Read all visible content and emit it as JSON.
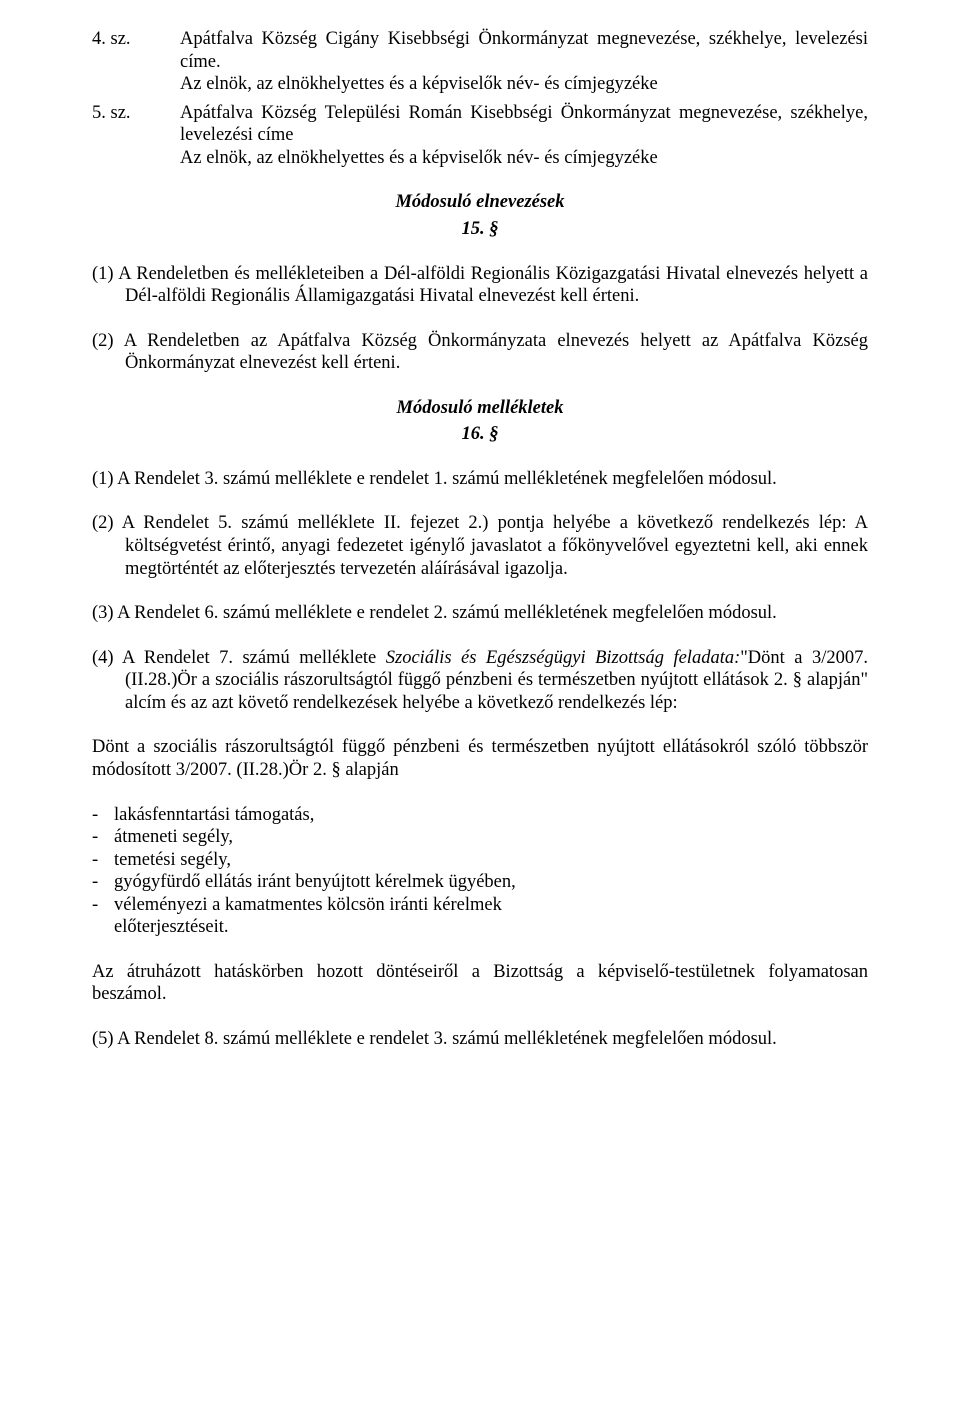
{
  "items": [
    {
      "num": "4. sz.",
      "line1": "Apátfalva Község Cigány Kisebbségi Önkormányzat megnevezése, székhelye, levelezési címe.",
      "line2": "Az elnök, az elnökhelyettes és a képviselők név- és címjegyzéke"
    },
    {
      "num": "5. sz.",
      "line1": "Apátfalva Község Települési Román Kisebbségi Önkormányzat megnevezése, székhelye, levelezési címe",
      "line2": "Az elnök, az elnökhelyettes és a képviselők név- és címjegyzéke"
    }
  ],
  "heading1": "Módosuló elnevezések",
  "section15": "15. §",
  "p15_1": "(1) A Rendeletben és mellékleteiben a Dél-alföldi Regionális Közigazgatási Hivatal elnevezés helyett a Dél-alföldi Regionális Államigazgatási Hivatal elnevezést kell érteni.",
  "p15_2": "(2) A Rendeletben az Apátfalva Község Önkormányzata elnevezés helyett az Apátfalva Község Önkormányzat elnevezést kell érteni.",
  "heading2": "Módosuló mellékletek",
  "section16": "16. §",
  "p16_1": "(1) A Rendelet 3. számú melléklete e rendelet 1. számú mellékletének megfelelően módosul.",
  "p16_2": "(2) A Rendelet 5. számú melléklete II. fejezet 2.) pontja helyébe a következő rendelkezés lép: A költségvetést érintő, anyagi fedezetet igénylő javaslatot a főkönyvelővel egyeztetni kell, aki ennek megtörténtét az előterjesztés tervezetén aláírásával igazolja.",
  "p16_3": "(3) A Rendelet 6. számú melléklete e rendelet 2. számú mellékletének megfelelően módosul.",
  "p16_4_a": "(4) A Rendelet 7. számú melléklete ",
  "p16_4_em": "Szociális és Egészségügyi Bizottság feladata:",
  "p16_4_b": "\"Dönt a 3/2007. (II.28.)Ör a szociális rászorultságtól függő pénzbeni és természetben nyújtott ellátások 2. § alapján\" alcím és az azt követő rendelkezések helyébe a következő rendelkezés lép:",
  "p16_5": "Dönt a szociális rászorultságtól függő pénzbeni és természetben nyújtott ellátásokról szóló többször módosított 3/2007. (II.28.)Ör 2. § alapján",
  "list": [
    "lakásfenntartási támogatás,",
    "átmeneti segély,",
    "temetési segély,",
    "gyógyfürdő ellátás  iránt benyújtott kérelmek ügyében,",
    "véleményezi a kamatmentes kölcsön iránti kérelmek"
  ],
  "list_tail": "előterjesztéseit.",
  "p_transfer": "Az átruházott hatáskörben hozott döntéseiről a Bizottság a képviselő-testületnek folyamatosan beszámol.",
  "p16_6": "(5) A Rendelet 8. számú melléklete e rendelet 3. számú mellékletének megfelelően módosul.",
  "dash": "-"
}
